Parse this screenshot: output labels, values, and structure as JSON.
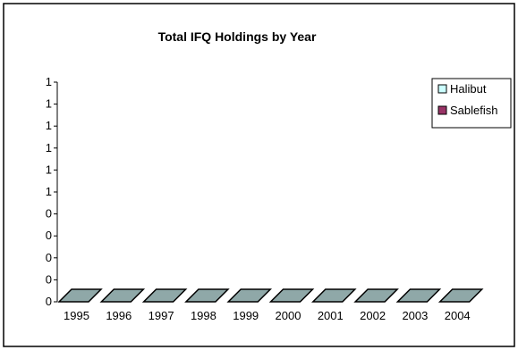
{
  "chart_data": {
    "type": "bar",
    "title": "Total IFQ Holdings by Year",
    "xlabel": "",
    "ylabel": "",
    "categories": [
      "1995",
      "1996",
      "1997",
      "1998",
      "1999",
      "2000",
      "2001",
      "2002",
      "2003",
      "2004"
    ],
    "series": [
      {
        "name": "Halibut",
        "values": [
          0,
          0,
          0,
          0,
          0,
          0,
          0,
          0,
          0,
          0
        ]
      },
      {
        "name": "Sablefish",
        "values": [
          0,
          0,
          0,
          0,
          0,
          0,
          0,
          0,
          0,
          0
        ]
      }
    ],
    "y_tick_labels": [
      "0",
      "0",
      "0",
      "0",
      "0",
      "1",
      "1",
      "1",
      "1",
      "1",
      "1"
    ],
    "ylim": [
      0,
      1
    ],
    "three_d": true,
    "grid": false,
    "legend_position": "right",
    "colors": {
      "Halibut": "#ccffff",
      "Sablefish": "#993366",
      "floor_fill": "#8fa8a8"
    }
  }
}
